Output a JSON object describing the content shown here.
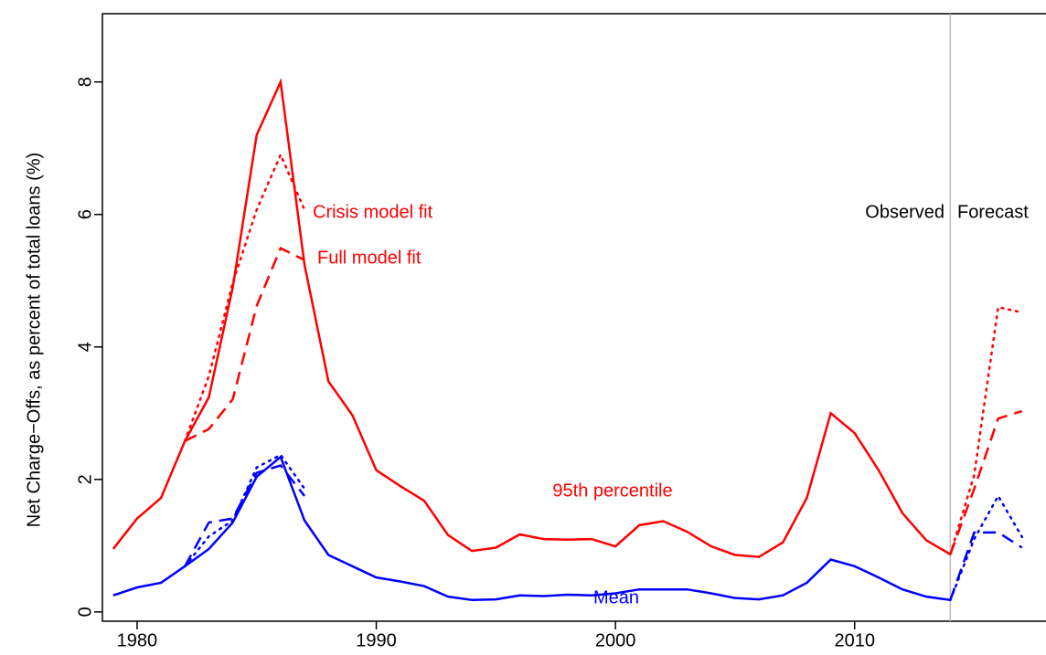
{
  "chart_data": {
    "type": "line",
    "ylabel": "Net Charge−Offs, as percent of total loans (%)",
    "xlim": [
      1978.55,
      2018.0
    ],
    "ylim": [
      -0.14,
      9.03
    ],
    "xticks": [
      1980,
      1990,
      2000,
      2010
    ],
    "yticks": [
      0,
      2,
      4,
      6,
      8
    ],
    "vline": 2014,
    "vline_color": "#bbbbbb",
    "series": [
      {
        "color": "#ff0000",
        "dash": "solid",
        "x": [
          1979,
          1980,
          1981,
          1982,
          1983,
          1984,
          1985,
          1986,
          1987,
          1988,
          1989,
          1990,
          1991,
          1992,
          1993,
          1994,
          1995,
          1996,
          1997,
          1998,
          1999,
          2000,
          2001,
          2002,
          2003,
          2004,
          2005,
          2006,
          2007,
          2008,
          2009,
          2010,
          2011,
          2012,
          2013,
          2014
        ],
        "values": [
          0.95,
          1.41,
          1.72,
          2.58,
          3.24,
          4.9,
          7.2,
          8.0,
          5.24,
          3.48,
          2.97,
          2.14,
          1.9,
          1.68,
          1.16,
          0.92,
          0.97,
          1.17,
          1.1,
          1.09,
          1.1,
          0.99,
          1.31,
          1.37,
          1.21,
          0.99,
          0.86,
          0.83,
          1.05,
          1.72,
          3.0,
          2.7,
          2.14,
          1.49,
          1.08,
          0.87
        ]
      },
      {
        "color": "#0000ff",
        "dash": "solid",
        "x": [
          1979,
          1980,
          1981,
          1982,
          1983,
          1984,
          1985,
          1986,
          1987,
          1988,
          1989,
          1990,
          1991,
          1992,
          1993,
          1994,
          1995,
          1996,
          1997,
          1998,
          1999,
          2000,
          2001,
          2002,
          2003,
          2004,
          2005,
          2006,
          2007,
          2008,
          2009,
          2010,
          2011,
          2012,
          2013,
          2014
        ],
        "values": [
          0.25,
          0.37,
          0.44,
          0.69,
          0.95,
          1.35,
          2.04,
          2.34,
          1.38,
          0.86,
          0.69,
          0.52,
          0.46,
          0.39,
          0.23,
          0.18,
          0.19,
          0.25,
          0.24,
          0.26,
          0.25,
          0.28,
          0.34,
          0.34,
          0.34,
          0.28,
          0.21,
          0.19,
          0.25,
          0.44,
          0.79,
          0.69,
          0.52,
          0.34,
          0.23,
          0.18
        ]
      },
      {
        "color": "#ff0000",
        "dash": "dotted",
        "x": [
          1982,
          1983,
          1984,
          1985,
          1986,
          1987
        ],
        "values": [
          2.58,
          3.56,
          4.97,
          6.07,
          6.9,
          6.07
        ]
      },
      {
        "color": "#ff0000",
        "dash": "dashed",
        "x": [
          1982,
          1983,
          1984,
          1985,
          1986,
          1987
        ],
        "values": [
          2.58,
          2.76,
          3.21,
          4.62,
          5.49,
          5.31
        ]
      },
      {
        "color": "#0000ff",
        "dash": "dotted",
        "x": [
          1982,
          1983,
          1984,
          1985,
          1986,
          1987
        ],
        "values": [
          0.69,
          1.14,
          1.38,
          2.18,
          2.37,
          1.86
        ]
      },
      {
        "color": "#0000ff",
        "dash": "dashed",
        "x": [
          1982,
          1983,
          1984,
          1985,
          1986,
          1987
        ],
        "values": [
          0.69,
          1.35,
          1.41,
          2.1,
          2.21,
          1.75
        ]
      },
      {
        "color": "#ff0000",
        "dash": "dotted",
        "x": [
          2014,
          2015,
          2016,
          2017
        ],
        "values": [
          0.87,
          2.07,
          4.6,
          4.52
        ]
      },
      {
        "color": "#ff0000",
        "dash": "dashed",
        "x": [
          2014,
          2015,
          2016,
          2017
        ],
        "values": [
          0.87,
          1.86,
          2.92,
          3.03
        ]
      },
      {
        "color": "#0000ff",
        "dash": "dotted",
        "x": [
          2014,
          2015,
          2016,
          2017
        ],
        "values": [
          0.18,
          1.1,
          1.75,
          1.13
        ]
      },
      {
        "color": "#0000ff",
        "dash": "dashed",
        "x": [
          2014,
          2015,
          2016,
          2017
        ],
        "values": [
          0.18,
          1.2,
          1.2,
          0.97
        ]
      }
    ],
    "annotations": [
      {
        "text": "Crisis model fit",
        "color": "#ff0000"
      },
      {
        "text": "Full model fit",
        "color": "#ff0000"
      },
      {
        "text": "95th percentile",
        "color": "#ff0000"
      },
      {
        "text": "Mean",
        "color": "#0000ff"
      },
      {
        "text": "Observed",
        "color": "#000000"
      },
      {
        "text": "Forecast",
        "color": "#000000"
      }
    ]
  }
}
